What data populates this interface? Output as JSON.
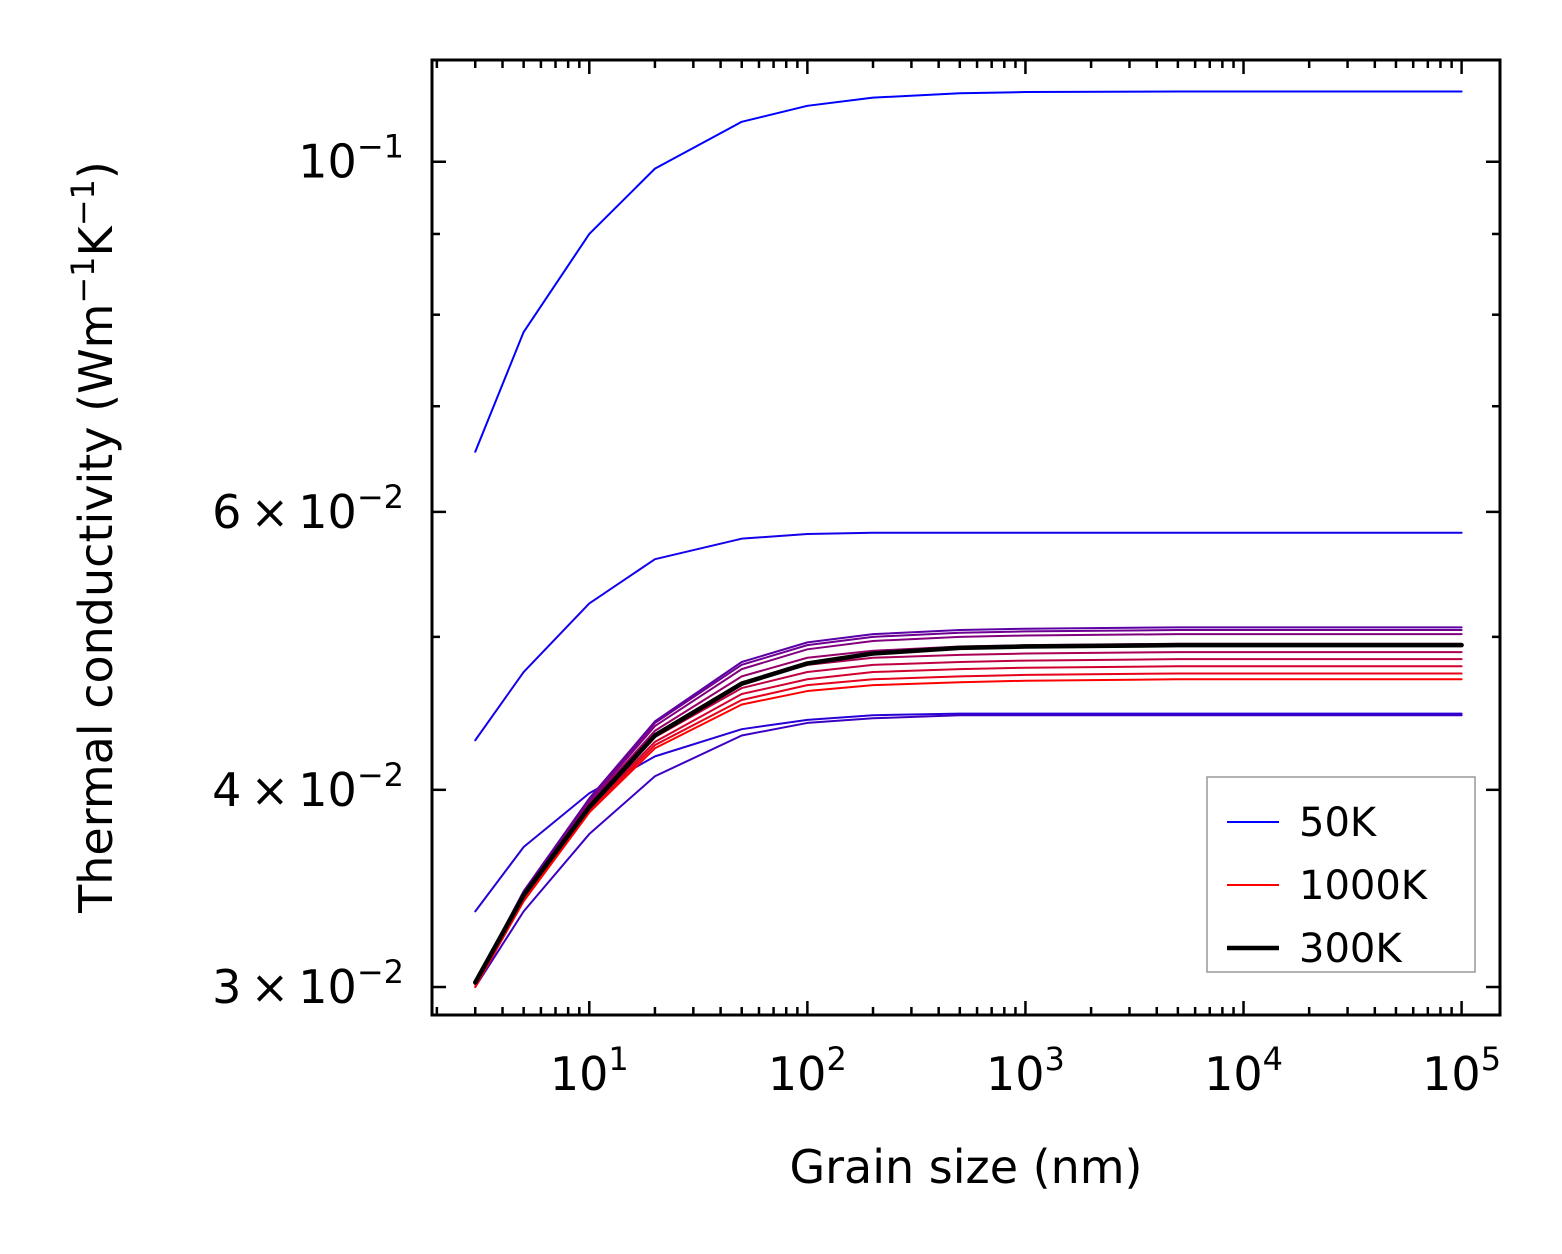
{
  "chart_data": {
    "type": "line",
    "title": "",
    "xlabel": "Grain size (nm)",
    "ylabel": "Thermal conductivity (Wm",
    "ylabel_units": [
      {
        "text": "Thermal conductivity (Wm",
        "sup": false
      },
      {
        "text": "−1",
        "sup": true
      },
      {
        "text": "K",
        "sup": false
      },
      {
        "text": "−1",
        "sup": true
      },
      {
        "text": ")",
        "sup": false
      }
    ],
    "xscale": "log",
    "yscale": "log",
    "xlim": [
      1.9,
      150000
    ],
    "ylim": [
      0.0288,
      0.116
    ],
    "x_ticks": [
      {
        "value": 10,
        "base": "10",
        "exp": "1"
      },
      {
        "value": 100,
        "base": "10",
        "exp": "2"
      },
      {
        "value": 1000,
        "base": "10",
        "exp": "3"
      },
      {
        "value": 10000,
        "base": "10",
        "exp": "4"
      },
      {
        "value": 100000,
        "base": "10",
        "exp": "5"
      }
    ],
    "y_ticks": [
      {
        "value": 0.1,
        "mant": "",
        "base": "10",
        "exp": "−1"
      },
      {
        "value": 0.06,
        "mant": "6 × 10",
        "base": "",
        "exp": "−2"
      },
      {
        "value": 0.04,
        "mant": "4 × 10",
        "base": "",
        "exp": "−2"
      },
      {
        "value": 0.03,
        "mant": "3 × 10",
        "base": "",
        "exp": "−2"
      }
    ],
    "y_minor_ticks": [
      0.05,
      0.07,
      0.08,
      0.09
    ],
    "x": [
      3,
      5,
      10,
      20,
      50,
      100,
      200,
      500,
      1000,
      5000,
      100000
    ],
    "series": [
      {
        "name": "50K",
        "color": "#0000ff",
        "width": 2,
        "label": true,
        "values": [
          0.0655,
          0.078,
          0.09,
          0.099,
          0.106,
          0.1085,
          0.1098,
          0.1105,
          0.1107,
          0.1108,
          0.1108
        ]
      },
      {
        "name": "",
        "color": "#1400eb",
        "width": 2,
        "label": false,
        "values": [
          0.043,
          0.0475,
          0.0525,
          0.056,
          0.0577,
          0.0581,
          0.0582,
          0.0582,
          0.0582,
          0.0582,
          0.0582
        ]
      },
      {
        "name": "",
        "color": "#2800d7",
        "width": 2,
        "label": false,
        "values": [
          0.0335,
          0.0368,
          0.0398,
          0.042,
          0.0437,
          0.0443,
          0.0446,
          0.0447,
          0.0447,
          0.0447,
          0.0447
        ]
      },
      {
        "name": "",
        "color": "#3c00c3",
        "width": 2,
        "label": false,
        "values": [
          0.03,
          0.0335,
          0.0375,
          0.0408,
          0.0433,
          0.0441,
          0.0444,
          0.0446,
          0.0446,
          0.0446,
          0.0446
        ]
      },
      {
        "name": "",
        "color": "#5a00a5",
        "width": 2,
        "label": false,
        "values": [
          0.0302,
          0.0345,
          0.0395,
          0.0442,
          0.0482,
          0.0496,
          0.0502,
          0.0505,
          0.0506,
          0.0507,
          0.0507
        ]
      },
      {
        "name": "",
        "color": "#6e0091",
        "width": 2,
        "label": false,
        "values": [
          0.0302,
          0.0344,
          0.0394,
          0.0441,
          0.048,
          0.0494,
          0.05,
          0.0503,
          0.0504,
          0.0505,
          0.0505
        ]
      },
      {
        "name": "",
        "color": "#82007d",
        "width": 2,
        "label": false,
        "values": [
          0.0302,
          0.0343,
          0.0393,
          0.0439,
          0.0477,
          0.0491,
          0.0497,
          0.05,
          0.0501,
          0.0502,
          0.0502
        ]
      },
      {
        "name": "",
        "color": "#960069",
        "width": 2,
        "label": false,
        "values": [
          0.0302,
          0.0343,
          0.0392,
          0.0436,
          0.0472,
          0.0485,
          0.049,
          0.0493,
          0.0494,
          0.0495,
          0.0495
        ]
      },
      {
        "name": "",
        "color": "#aa0055",
        "width": 2,
        "label": false,
        "values": [
          0.0302,
          0.0342,
          0.0391,
          0.0434,
          0.0468,
          0.048,
          0.0485,
          0.0487,
          0.0488,
          0.0489,
          0.0489
        ]
      },
      {
        "name": "",
        "color": "#be0041",
        "width": 2,
        "label": false,
        "values": [
          0.0302,
          0.0342,
          0.039,
          0.0432,
          0.0464,
          0.0475,
          0.048,
          0.0482,
          0.0483,
          0.0484,
          0.0484
        ]
      },
      {
        "name": "",
        "color": "#d2002d",
        "width": 2,
        "label": false,
        "values": [
          0.0302,
          0.0341,
          0.0389,
          0.0429,
          0.046,
          0.047,
          0.0475,
          0.0477,
          0.0478,
          0.0479,
          0.0479
        ]
      },
      {
        "name": "",
        "color": "#e60019",
        "width": 2,
        "label": false,
        "values": [
          0.0301,
          0.0341,
          0.0388,
          0.0427,
          0.0456,
          0.0466,
          0.047,
          0.0472,
          0.0473,
          0.0474,
          0.0474
        ]
      },
      {
        "name": "1000K",
        "color": "#ff0000",
        "width": 2,
        "label": true,
        "values": [
          0.03,
          0.034,
          0.0387,
          0.0425,
          0.0453,
          0.0462,
          0.0466,
          0.0468,
          0.0469,
          0.047,
          0.047
        ]
      },
      {
        "name": "300K",
        "color": "#000000",
        "width": 4.5,
        "label": true,
        "values": [
          0.0302,
          0.0343,
          0.039,
          0.0433,
          0.0467,
          0.0481,
          0.0488,
          0.0492,
          0.0493,
          0.0494,
          0.0494
        ]
      }
    ],
    "legend": {
      "placement": "lower-right",
      "entries": [
        "50K",
        "1000K",
        "300K"
      ]
    }
  }
}
